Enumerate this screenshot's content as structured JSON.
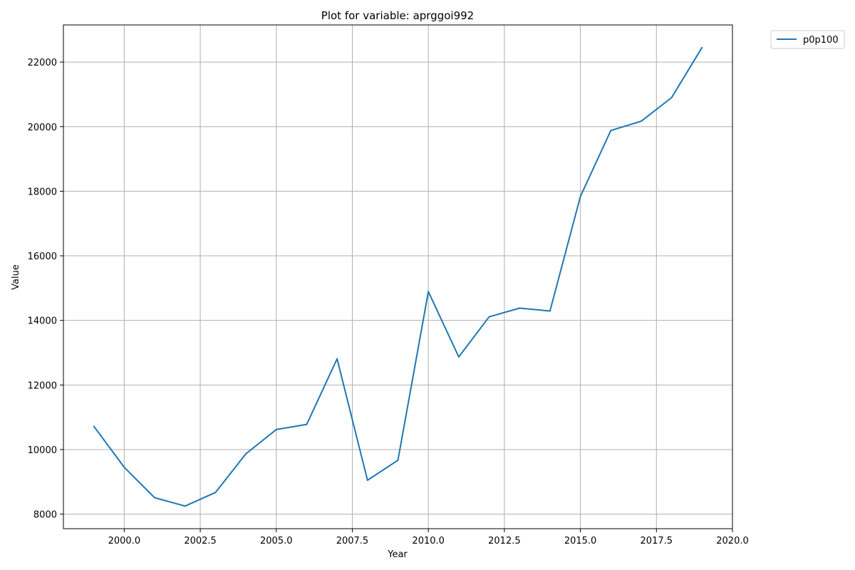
{
  "chart_data": {
    "type": "line",
    "title": "Plot for variable: aprggoi992",
    "xlabel": "Year",
    "ylabel": "Value",
    "xlim": [
      1998.0,
      2020.0
    ],
    "ylim": [
      7550,
      23150
    ],
    "x_ticks": [
      2000.0,
      2002.5,
      2005.0,
      2007.5,
      2010.0,
      2012.5,
      2015.0,
      2017.5,
      2020.0
    ],
    "x_tick_labels": [
      "2000.0",
      "2002.5",
      "2005.0",
      "2007.5",
      "2010.0",
      "2012.5",
      "2015.0",
      "2017.5",
      "2020.0"
    ],
    "y_ticks": [
      8000,
      10000,
      12000,
      14000,
      16000,
      18000,
      20000,
      22000
    ],
    "y_tick_labels": [
      "8000",
      "10000",
      "12000",
      "14000",
      "16000",
      "18000",
      "20000",
      "22000"
    ],
    "grid": true,
    "legend_position": "outside-top-right",
    "color": "#1f77b4",
    "x": [
      1999,
      2000,
      2001,
      2002,
      2003,
      2004,
      2005,
      2006,
      2007,
      2008,
      2009,
      2010,
      2011,
      2012,
      2013,
      2014,
      2015,
      2016,
      2017,
      2018,
      2019
    ],
    "series": [
      {
        "name": "p0p100",
        "values": [
          10720,
          9450,
          8510,
          8250,
          8670,
          9870,
          10620,
          10780,
          12810,
          9050,
          9670,
          14890,
          12870,
          14110,
          14380,
          14290,
          17840,
          19880,
          20170,
          20900,
          22450
        ]
      }
    ]
  }
}
